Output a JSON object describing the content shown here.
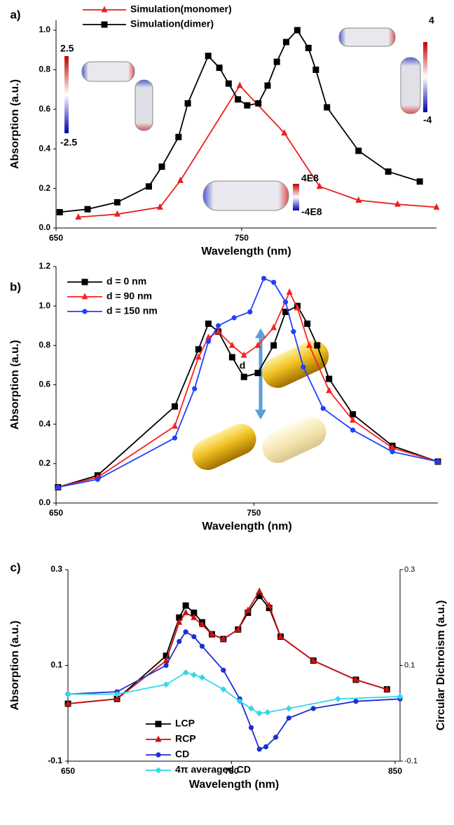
{
  "chart_data": [
    {
      "type": "line",
      "label": "a)",
      "xlabel": "Wavelength (nm)",
      "ylabel": "Absorption (a.u.)",
      "xlim": [
        650,
        855
      ],
      "xticks": [
        650,
        750
      ],
      "ylim": [
        0,
        1.05
      ],
      "yticks": [
        {
          "value": 0,
          "label": "0.0"
        },
        0.2,
        0.4,
        0.6,
        0.8,
        {
          "value": 1,
          "label": "1.0"
        }
      ],
      "annotations": [
        "2.5",
        "-2.5",
        "4",
        "-4",
        "4E8",
        "-4E8"
      ],
      "series": [
        {
          "name": "Simulation(monomer)",
          "color": "#e8201e",
          "marker": "triangle",
          "x": [
            662,
            683,
            706,
            717,
            749,
            773,
            792,
            813,
            834,
            855
          ],
          "values": [
            0.055,
            0.07,
            0.105,
            0.24,
            0.72,
            0.48,
            0.21,
            0.14,
            0.12,
            0.105
          ]
        },
        {
          "name": "Simulation(dimer)",
          "color": "#000000",
          "marker": "square",
          "x": [
            652,
            667,
            683,
            700,
            707,
            716,
            721,
            732,
            738,
            743,
            748,
            753,
            759,
            764,
            769,
            774,
            780,
            786,
            790,
            796,
            813,
            829,
            846
          ],
          "values": [
            0.08,
            0.095,
            0.13,
            0.21,
            0.31,
            0.46,
            0.63,
            0.87,
            0.81,
            0.73,
            0.65,
            0.62,
            0.63,
            0.72,
            0.84,
            0.94,
            1.0,
            0.91,
            0.8,
            0.61,
            0.39,
            0.285,
            0.235
          ]
        }
      ]
    },
    {
      "type": "line",
      "label": "b)",
      "xlabel": "Wavelength (nm)",
      "ylabel": "Absorption (a.u.)",
      "xlim": [
        650,
        843
      ],
      "xticks": [
        650,
        750
      ],
      "ylim": [
        0,
        1.2
      ],
      "yticks": [
        {
          "value": 0,
          "label": "0.0"
        },
        0.2,
        0.4,
        0.6,
        0.8,
        {
          "value": 1,
          "label": "1.0"
        },
        1.2
      ],
      "annotations": [
        "d"
      ],
      "series": [
        {
          "name": "d = 0 nm",
          "color": "#000000",
          "marker": "square",
          "x": [
            651,
            671,
            710,
            722,
            727,
            732,
            739,
            745,
            752,
            760,
            766,
            772,
            777,
            782,
            788,
            800,
            820,
            843
          ],
          "values": [
            0.08,
            0.14,
            0.49,
            0.78,
            0.91,
            0.87,
            0.74,
            0.64,
            0.66,
            0.8,
            0.97,
            1.0,
            0.91,
            0.8,
            0.63,
            0.45,
            0.29,
            0.21
          ]
        },
        {
          "name": "d = 90 nm",
          "color": "#ff2020",
          "marker": "triangle",
          "x": [
            651,
            671,
            710,
            722,
            727,
            732,
            739,
            745,
            752,
            760,
            768,
            772,
            778,
            788,
            800,
            820,
            843
          ],
          "values": [
            0.08,
            0.13,
            0.39,
            0.74,
            0.84,
            0.87,
            0.8,
            0.75,
            0.8,
            0.89,
            1.07,
            0.99,
            0.8,
            0.57,
            0.42,
            0.28,
            0.21
          ]
        },
        {
          "name": "d = 150 nm",
          "color": "#2040ff",
          "marker": "circle",
          "x": [
            651,
            671,
            710,
            720,
            727,
            732,
            740,
            748,
            755,
            760,
            766,
            770,
            775,
            785,
            800,
            820,
            843
          ],
          "values": [
            0.08,
            0.12,
            0.33,
            0.58,
            0.82,
            0.9,
            0.94,
            0.97,
            1.14,
            1.12,
            1.02,
            0.87,
            0.69,
            0.48,
            0.37,
            0.26,
            0.21
          ]
        }
      ]
    },
    {
      "type": "line",
      "label": "c)",
      "xlabel": "Wavelength (nm)",
      "ylabel": "Absorption (a.u.)",
      "y2label": "Circular Dichroism (a.u.)",
      "xlim": [
        650,
        853
      ],
      "xticks": [
        650,
        750,
        850
      ],
      "ylim": [
        -0.1,
        0.3
      ],
      "yticks": [
        -0.1,
        0.1,
        0.3
      ],
      "y2lim": [
        -0.1,
        0.3
      ],
      "y2ticks": [
        -0.1,
        0.1,
        0.3
      ],
      "series": [
        {
          "name": "LCP",
          "color": "#000000",
          "marker": "square",
          "x": [
            650,
            680,
            710,
            718,
            722,
            727,
            732,
            738,
            745,
            754,
            760,
            767,
            773,
            780,
            800,
            826,
            845
          ],
          "values": [
            0.02,
            0.03,
            0.12,
            0.2,
            0.225,
            0.21,
            0.19,
            0.165,
            0.155,
            0.175,
            0.21,
            0.245,
            0.22,
            0.16,
            0.11,
            0.07,
            0.05
          ]
        },
        {
          "name": "RCP",
          "color": "#cc1111",
          "marker": "triangle",
          "x": [
            650,
            680,
            710,
            718,
            722,
            727,
            732,
            738,
            745,
            754,
            760,
            767,
            773,
            780,
            800,
            826,
            845
          ],
          "values": [
            0.02,
            0.03,
            0.11,
            0.19,
            0.21,
            0.2,
            0.185,
            0.165,
            0.155,
            0.175,
            0.215,
            0.255,
            0.225,
            0.16,
            0.11,
            0.07,
            0.05
          ]
        },
        {
          "name": "CD",
          "color": "#1c2fd0",
          "marker": "circle",
          "axis": "y2",
          "x": [
            650,
            680,
            710,
            718,
            722,
            727,
            732,
            745,
            755,
            762,
            767,
            771,
            777,
            785,
            800,
            826,
            853
          ],
          "values": [
            0.04,
            0.045,
            0.1,
            0.15,
            0.17,
            0.16,
            0.14,
            0.09,
            0.03,
            -0.03,
            -0.075,
            -0.07,
            -0.05,
            -0.01,
            0.01,
            0.025,
            0.03
          ]
        },
        {
          "name": "4π averaged CD",
          "color": "#33d8e8",
          "marker": "diamond",
          "axis": "y2",
          "x": [
            650,
            680,
            710,
            722,
            727,
            732,
            745,
            755,
            762,
            767,
            772,
            785,
            815,
            853
          ],
          "values": [
            0.04,
            0.04,
            0.06,
            0.085,
            0.08,
            0.075,
            0.05,
            0.025,
            0.01,
            0,
            0.002,
            0.01,
            0.03,
            0.035
          ]
        }
      ]
    }
  ]
}
